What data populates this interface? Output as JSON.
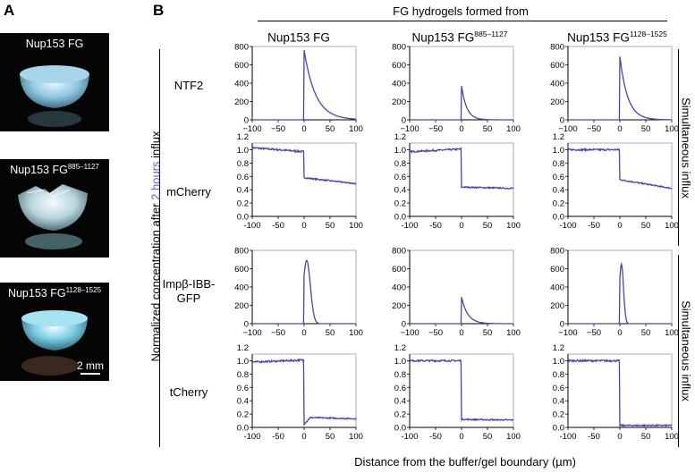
{
  "panel_a": {
    "letter": "A",
    "photos": [
      {
        "label": "Nup153 FG",
        "sup": "",
        "tint": "#bfe3f2"
      },
      {
        "label": "Nup153 FG",
        "sup": "885–1127",
        "tint": "#e0eef2"
      },
      {
        "label": "Nup153 FG",
        "sup": "1128–1525",
        "tint": "#c6eef6"
      }
    ],
    "scale_bar": "2 mm"
  },
  "panel_b": {
    "letter": "B",
    "header": "FG hydrogels formed from",
    "columns": [
      {
        "label": "Nup153 FG",
        "sup": ""
      },
      {
        "label": "Nup153 FG",
        "sup": "885–1127"
      },
      {
        "label": "Nup153 FG",
        "sup": "1128–1525"
      }
    ],
    "rows": [
      {
        "label": "NTF2"
      },
      {
        "label": "mCherry"
      },
      {
        "label": "Impβ-IBB-GFP"
      },
      {
        "label": "tCherry"
      }
    ],
    "y_axis_label": {
      "prefix": "Normalized concentration after ",
      "highlight": "2 hours",
      "suffix": " influx"
    },
    "right_label": "Simultaneous influx",
    "x_axis_label": "Distance from the buffer/gel boundary (µm)"
  },
  "chart_data": {
    "type": "line",
    "line_color": "#4a45a8",
    "x_label": "Distance from the buffer/gel boundary (µm)",
    "xlim": [
      -100,
      100
    ],
    "x_ticks_rows_1_3": [
      "−100",
      "−50",
      "0",
      "50",
      "100"
    ],
    "x_ticks_rows_2_4": [
      "-100",
      "-50",
      "0",
      "50",
      "100"
    ],
    "peak_rows": {
      "ylim": [
        0,
        800
      ],
      "y_ticks": [
        "0",
        "200",
        "400",
        "600",
        "800"
      ]
    },
    "flat_rows": {
      "ylim": [
        0,
        1.1
      ],
      "y_ticks": [
        "0.0",
        "0.2",
        "0.4",
        "0.6",
        "0.8",
        "1.0",
        "1.2"
      ]
    },
    "panels": [
      {
        "row": "NTF2",
        "column": "Nup153 FG",
        "kind": "peak",
        "peak": 760,
        "decay": 22
      },
      {
        "row": "NTF2",
        "column": "Nup153 FG885–1127",
        "kind": "peak",
        "peak": 370,
        "decay": 10
      },
      {
        "row": "NTF2",
        "column": "Nup153 FG1128–1525",
        "kind": "peak",
        "peak": 690,
        "decay": 15
      },
      {
        "row": "mCherry",
        "column": "Nup153 FG",
        "kind": "flat",
        "buffer": [
          1.03,
          0.97
        ],
        "gel": [
          0.58,
          0.49
        ]
      },
      {
        "row": "mCherry",
        "column": "Nup153 FG885–1127",
        "kind": "flat",
        "buffer": [
          0.97,
          1.01
        ],
        "gel": [
          0.44,
          0.42
        ]
      },
      {
        "row": "mCherry",
        "column": "Nup153 FG1128–1525",
        "kind": "flat",
        "buffer": [
          1.0,
          1.0
        ],
        "gel": [
          0.55,
          0.42
        ]
      },
      {
        "row": "Impβ-IBB-GFP",
        "column": "Nup153 FG",
        "kind": "pulse",
        "peak": 690,
        "center": 5,
        "width": 7
      },
      {
        "row": "Impβ-IBB-GFP",
        "column": "Nup153 FG885–1127",
        "kind": "peak",
        "peak": 290,
        "decay": 12
      },
      {
        "row": "Impβ-IBB-GFP",
        "column": "Nup153 FG1128–1525",
        "kind": "pulse",
        "peak": 650,
        "center": 3,
        "width": 4
      },
      {
        "row": "tCherry",
        "column": "Nup153 FG",
        "kind": "flat",
        "buffer": [
          0.98,
          1.01
        ],
        "gel": [
          0.15,
          0.13
        ],
        "dip": 0.1
      },
      {
        "row": "tCherry",
        "column": "Nup153 FG885–1127",
        "kind": "flat",
        "buffer": [
          1.0,
          1.0
        ],
        "gel": [
          0.12,
          0.11
        ]
      },
      {
        "row": "tCherry",
        "column": "Nup153 FG1128–1525",
        "kind": "flat",
        "buffer": [
          1.0,
          1.0
        ],
        "gel": [
          0.03,
          0.03
        ]
      }
    ]
  }
}
